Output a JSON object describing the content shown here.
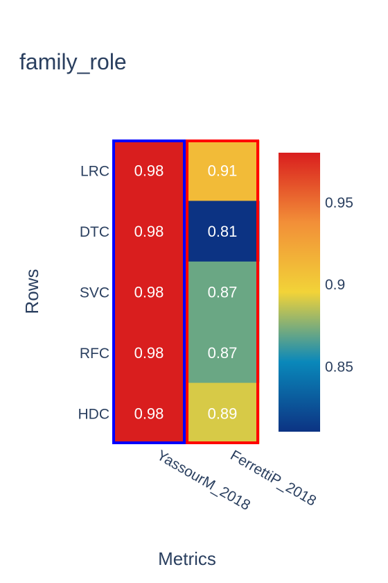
{
  "chart_data": {
    "type": "heatmap",
    "title": "family_role",
    "xlabel": "Metrics",
    "ylabel": "Rows",
    "columns": [
      "YassourM_2018",
      "FerrettiP_2018"
    ],
    "rows": [
      "LRC",
      "DTC",
      "SVC",
      "RFC",
      "HDC"
    ],
    "values": [
      [
        0.98,
        0.91
      ],
      [
        0.98,
        0.81
      ],
      [
        0.98,
        0.87
      ],
      [
        0.98,
        0.87
      ],
      [
        0.98,
        0.89
      ]
    ],
    "value_labels": [
      [
        "0.98",
        "0.91"
      ],
      [
        "0.98",
        "0.81"
      ],
      [
        "0.98",
        "0.87"
      ],
      [
        "0.98",
        "0.87"
      ],
      [
        "0.98",
        "0.89"
      ]
    ],
    "colorscale": {
      "name": "Portland-like",
      "range": [
        0.81,
        0.98
      ],
      "ticks": [
        0.85,
        0.9,
        0.95
      ],
      "tick_labels": [
        "0.85",
        "0.9",
        "0.95"
      ],
      "stops": [
        [
          0.0,
          "#0c3383"
        ],
        [
          0.25,
          "#0a88ba"
        ],
        [
          0.5,
          "#f2d338"
        ],
        [
          0.75,
          "#f28f38"
        ],
        [
          1.0,
          "#d91e1e"
        ]
      ]
    },
    "column_highlights": [
      {
        "column": "YassourM_2018",
        "color": "#0000ff"
      },
      {
        "column": "FerrettiP_2018",
        "color": "#ff0000"
      }
    ]
  }
}
